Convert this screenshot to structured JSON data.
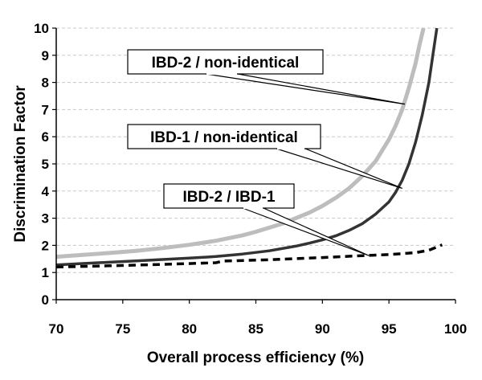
{
  "chart_data": {
    "type": "line",
    "xlabel": "Overall process efficiency  (%)",
    "ylabel": "Discrimination Factor",
    "xlim": [
      70,
      100
    ],
    "ylim": [
      0,
      10
    ],
    "xticks": [
      70,
      75,
      80,
      85,
      90,
      95,
      100
    ],
    "yticks": [
      0,
      1,
      2,
      3,
      4,
      5,
      6,
      7,
      8,
      9,
      10
    ],
    "grid": "horizontal-dashed",
    "legend": "none",
    "series": [
      {
        "color": "#bdbdbd",
        "style": "solid",
        "x": [
          70,
          72,
          74,
          76,
          78,
          80,
          82,
          84,
          85,
          86,
          87,
          88,
          89,
          90,
          91,
          92,
          93,
          94,
          95,
          95.5,
          96,
          96.5,
          97,
          97.3,
          97.6
        ],
        "y": [
          1.58,
          1.65,
          1.72,
          1.8,
          1.9,
          2.02,
          2.17,
          2.37,
          2.5,
          2.65,
          2.8,
          3.0,
          3.2,
          3.45,
          3.75,
          4.1,
          4.55,
          5.1,
          5.9,
          6.4,
          7.0,
          7.8,
          8.7,
          9.4,
          10.0
        ]
      },
      {
        "color": "#333333",
        "style": "solid",
        "x": [
          70,
          72,
          74,
          76,
          78,
          80,
          82,
          84,
          86,
          88,
          89,
          90,
          91,
          92,
          93,
          94,
          95,
          95.5,
          96,
          96.5,
          97,
          97.5,
          98,
          98.3,
          98.6
        ],
        "y": [
          1.28,
          1.33,
          1.38,
          1.43,
          1.48,
          1.53,
          1.59,
          1.68,
          1.8,
          1.97,
          2.08,
          2.2,
          2.35,
          2.55,
          2.8,
          3.15,
          3.6,
          3.95,
          4.4,
          5.0,
          5.8,
          6.8,
          8.0,
          9.0,
          10.0
        ]
      },
      {
        "color": "#000000",
        "style": "dashed",
        "x": [
          70,
          74,
          78,
          82,
          82.5,
          86,
          90,
          93,
          95,
          97,
          98,
          99
        ],
        "y": [
          1.2,
          1.25,
          1.3,
          1.36,
          1.42,
          1.47,
          1.55,
          1.62,
          1.66,
          1.73,
          1.82,
          2.02
        ]
      }
    ],
    "annotations": [
      {
        "text": "IBD-2 / non-identical",
        "target": [
          96.2,
          7.2
        ]
      },
      {
        "text": "IBD-1 / non-identical",
        "target": [
          96.0,
          4.1
        ]
      },
      {
        "text": "IBD-2 / IBD-1",
        "target": [
          93.5,
          1.62
        ]
      }
    ]
  }
}
